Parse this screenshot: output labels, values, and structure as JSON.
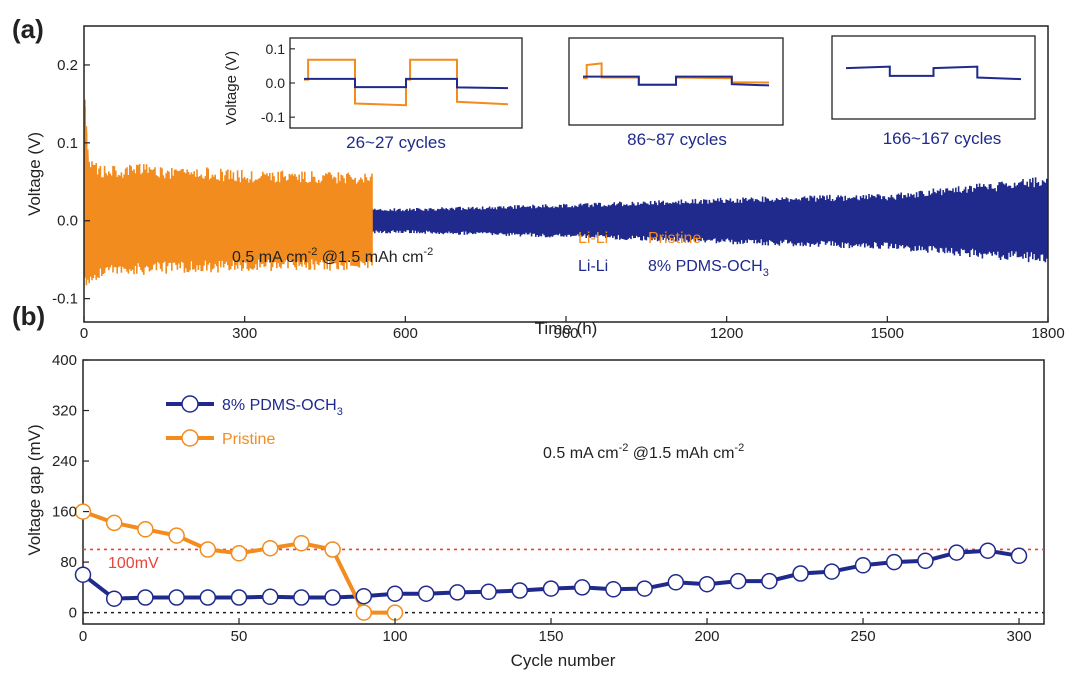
{
  "colors": {
    "orange": "#F28C1E",
    "navy": "#1F2A8C",
    "black": "#222222",
    "red_ref": "#E8443A"
  },
  "chart_data": [
    {
      "id": "a",
      "panel_label": "(a)",
      "type": "line",
      "title": "",
      "xlabel": "Time (h)",
      "ylabel": "Voltage (V)",
      "xlim": [
        0,
        1800
      ],
      "ylim": [
        -0.13,
        0.25
      ],
      "xticks": [
        0,
        300,
        600,
        900,
        1200,
        1500,
        1800
      ],
      "xtick_labels": [
        "0",
        "300",
        "600",
        "900",
        "1200",
        "1500",
        "1800"
      ],
      "yticks": [
        -0.1,
        0.0,
        0.1,
        0.2
      ],
      "ytick_labels": [
        "-0.1",
        "0.0",
        "0.1",
        "0.2"
      ],
      "annotation": {
        "prefix": "0.5 mA cm",
        "sup1": "-2",
        "mid": " @1.5 mAh cm",
        "sup2": "-2"
      },
      "series": [
        {
          "name": "Pristine",
          "cell": "Li-Li",
          "color": "orange",
          "x_end": 540,
          "envelope_upper": [
            [
              0,
              0.19
            ],
            [
              10,
              0.09
            ],
            [
              30,
              0.075
            ],
            [
              60,
              0.07
            ],
            [
              100,
              0.075
            ],
            [
              150,
              0.068
            ],
            [
              200,
              0.07
            ],
            [
              300,
              0.065
            ],
            [
              400,
              0.065
            ],
            [
              540,
              0.062
            ]
          ],
          "envelope_lower": [
            [
              0,
              -0.1
            ],
            [
              10,
              -0.08
            ],
            [
              30,
              -0.075
            ],
            [
              60,
              -0.07
            ],
            [
              100,
              -0.07
            ],
            [
              200,
              -0.068
            ],
            [
              300,
              -0.065
            ],
            [
              400,
              -0.066
            ],
            [
              540,
              -0.064
            ]
          ]
        },
        {
          "name": "8% PDMS-OCH",
          "name_sub": "3",
          "cell": "Li-Li",
          "color": "navy",
          "x_end": 1800,
          "envelope_upper": [
            [
              0,
              0.18
            ],
            [
              15,
              0.03
            ],
            [
              100,
              0.02
            ],
            [
              300,
              0.017
            ],
            [
              600,
              0.016
            ],
            [
              900,
              0.022
            ],
            [
              1200,
              0.03
            ],
            [
              1500,
              0.035
            ],
            [
              1700,
              0.05
            ],
            [
              1800,
              0.058
            ]
          ],
          "envelope_lower": [
            [
              0,
              -0.05
            ],
            [
              15,
              -0.025
            ],
            [
              100,
              -0.02
            ],
            [
              300,
              -0.018
            ],
            [
              600,
              -0.016
            ],
            [
              900,
              -0.022
            ],
            [
              1200,
              -0.03
            ],
            [
              1500,
              -0.037
            ],
            [
              1700,
              -0.05
            ],
            [
              1800,
              -0.055
            ]
          ]
        }
      ],
      "insets": [
        {
          "label": "26~27 cycles",
          "ylabel": "Voltage (V)",
          "ylim": [
            -0.12,
            0.12
          ],
          "yticks": [
            -0.1,
            0.0,
            0.1
          ],
          "ytick_labels": [
            "-0.1",
            "0.0",
            "0.1"
          ],
          "series": [
            {
              "color": "orange",
              "x": [
                0,
                0.02,
                0.02,
                0.25,
                0.25,
                0.5,
                0.5,
                0.52,
                0.52,
                0.75,
                0.75,
                1.0
              ],
              "y": [
                0.01,
                0.01,
                0.068,
                0.068,
                -0.06,
                -0.065,
                0.01,
                0.01,
                0.068,
                0.068,
                -0.055,
                -0.062
              ]
            },
            {
              "color": "navy",
              "x": [
                0,
                0.25,
                0.25,
                0.5,
                0.5,
                0.75,
                0.75,
                1.0
              ],
              "y": [
                0.012,
                0.012,
                -0.012,
                -0.012,
                0.012,
                0.012,
                -0.013,
                -0.015
              ]
            }
          ]
        },
        {
          "label": "86~87 cycles",
          "ylim": [
            -0.12,
            0.12
          ],
          "series": [
            {
              "color": "orange",
              "x": [
                0,
                0.02,
                0.02,
                0.1,
                0.1,
                0.3,
                0.3,
                0.5,
                0.5,
                0.8,
                0.8,
                1.0
              ],
              "y": [
                0.01,
                0.01,
                0.05,
                0.055,
                0.012,
                0.012,
                -0.01,
                -0.01,
                0.012,
                0.01,
                -0.002,
                -0.003
              ]
            },
            {
              "color": "navy",
              "x": [
                0,
                0.3,
                0.3,
                0.5,
                0.5,
                0.8,
                0.8,
                1.0
              ],
              "y": [
                0.015,
                0.015,
                -0.01,
                -0.01,
                0.015,
                0.015,
                -0.008,
                -0.012
              ]
            }
          ]
        },
        {
          "label": "166~167 cycles",
          "ylim": [
            -0.12,
            0.12
          ],
          "series": [
            {
              "color": "navy",
              "x": [
                0,
                0.25,
                0.25,
                0.5,
                0.5,
                0.75,
                0.75,
                1.0
              ],
              "y": [
                0.03,
                0.035,
                0.005,
                0.005,
                0.03,
                0.035,
                0.0,
                -0.005
              ]
            }
          ]
        }
      ]
    },
    {
      "id": "b",
      "panel_label": "(b)",
      "type": "line",
      "title": "",
      "xlabel": "Cycle number",
      "ylabel": "Voltage gap (mV)",
      "xlim": [
        0,
        308
      ],
      "ylim": [
        -18,
        400
      ],
      "xticks": [
        0,
        50,
        100,
        150,
        200,
        250,
        300
      ],
      "xtick_labels": [
        "0",
        "50",
        "100",
        "150",
        "200",
        "250",
        "300"
      ],
      "yticks": [
        0,
        80,
        160,
        240,
        320,
        400
      ],
      "ytick_labels": [
        "0",
        "80",
        "160",
        "240",
        "320",
        "400"
      ],
      "reference_lines": [
        {
          "y": 100,
          "color": "red_ref",
          "label": "100mV"
        },
        {
          "y": 0,
          "color": "black",
          "label": ""
        }
      ],
      "annotation": {
        "prefix": "0.5 mA cm",
        "sup1": "-2",
        "mid": " @1.5 mAh cm",
        "sup2": "-2"
      },
      "legend_position": "top-left",
      "series": [
        {
          "name": "8% PDMS-OCH",
          "name_sub": "3",
          "color": "navy",
          "x": [
            0,
            10,
            20,
            30,
            40,
            50,
            60,
            70,
            80,
            90,
            100,
            110,
            120,
            130,
            140,
            150,
            160,
            170,
            180,
            190,
            200,
            210,
            220,
            230,
            240,
            250,
            260,
            270,
            280,
            290,
            300
          ],
          "y": [
            60,
            22,
            24,
            24,
            24,
            24,
            25,
            24,
            24,
            26,
            30,
            30,
            32,
            33,
            35,
            38,
            40,
            37,
            38,
            48,
            45,
            50,
            50,
            62,
            65,
            75,
            80,
            82,
            95,
            98,
            90
          ]
        },
        {
          "name": "Pristine",
          "name_sub": "",
          "color": "orange",
          "x": [
            0,
            10,
            20,
            30,
            40,
            50,
            60,
            70,
            80,
            90,
            100
          ],
          "y": [
            160,
            142,
            132,
            122,
            100,
            94,
            102,
            110,
            100,
            0,
            0
          ]
        }
      ]
    }
  ]
}
